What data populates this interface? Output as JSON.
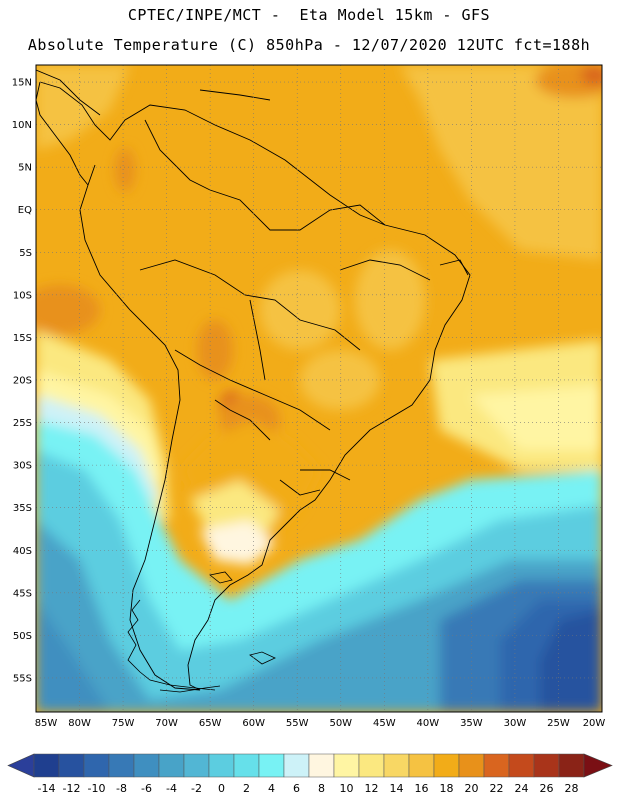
{
  "header": {
    "line1": "CPTEC/INPE/MCT -  Eta Model 15km - GFS",
    "line2": "Absolute Temperature (C) 850hPa - 12/07/2020 12UTC fct=188h"
  },
  "map": {
    "lon_range": [
      -85,
      -20
    ],
    "lat_range": [
      -59,
      17
    ],
    "lat_labels": [
      "15N",
      "10N",
      "5N",
      "EQ",
      "5S",
      "10S",
      "15S",
      "20S",
      "25S",
      "30S",
      "35S",
      "40S",
      "45S",
      "50S",
      "55S"
    ],
    "lat_values": [
      15,
      10,
      5,
      0,
      -5,
      -10,
      -15,
      -20,
      -25,
      -30,
      -35,
      -40,
      -45,
      -50,
      -55
    ],
    "lon_labels": [
      "85W",
      "80W",
      "75W",
      "70W",
      "65W",
      "60W",
      "55W",
      "50W",
      "45W",
      "40W",
      "35W",
      "30W",
      "25W",
      "20W"
    ],
    "lon_values": [
      -85,
      -80,
      -75,
      -70,
      -65,
      -60,
      -55,
      -50,
      -45,
      -40,
      -35,
      -30,
      -25,
      -20
    ]
  },
  "colorbar": {
    "labels": [
      "-14",
      "-12",
      "-10",
      "-8",
      "-6",
      "-4",
      "-2",
      "0",
      "2",
      "4",
      "6",
      "8",
      "10",
      "12",
      "14",
      "16",
      "18",
      "20",
      "22",
      "24",
      "26",
      "28"
    ],
    "colors": [
      "#1f3f8f",
      "#27529f",
      "#2f66ad",
      "#3779b6",
      "#3f8fc0",
      "#48a3c8",
      "#52b6d4",
      "#5ccde0",
      "#66e0ea",
      "#78f2f4",
      "#cdf2f8",
      "#fff6e0",
      "#fff5a3",
      "#fbe880",
      "#f8d764",
      "#f5c242",
      "#f2ac18",
      "#e8911a",
      "#d9651f",
      "#c44a1c",
      "#a9341a",
      "#8a2317"
    ],
    "under_color": "#2b3f9a",
    "over_color": "#7a0f14"
  }
}
